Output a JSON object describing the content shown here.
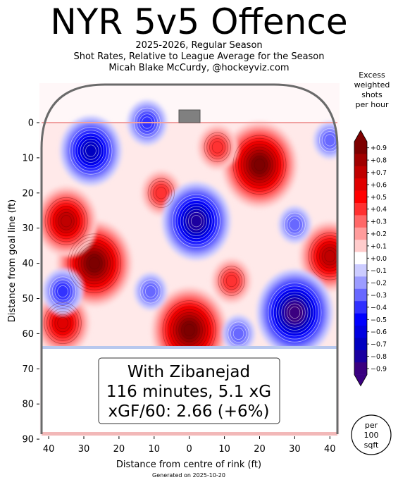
{
  "header": {
    "title": "NYR 5v5 Offence",
    "subtitle1": "2025-2026, Regular Season",
    "subtitle2": "Shot Rates, Relative to League Average for the Season",
    "subtitle3": "Micah Blake McCurdy, @hockeyviz.com"
  },
  "footer": {
    "generated": "Generated on 2025-10-20"
  },
  "colorbar": {
    "title": [
      "Excess",
      "weighted",
      "shots",
      "per hour"
    ],
    "ticks": [
      "+0.9",
      "+0.8",
      "+0.7",
      "+0.6",
      "+0.5",
      "+0.4",
      "+0.3",
      "+0.2",
      "+0.1",
      "+0.0",
      "−0.1",
      "−0.2",
      "−0.3",
      "−0.4",
      "−0.5",
      "−0.6",
      "−0.7",
      "−0.8",
      "−0.9"
    ],
    "colors": [
      "#7d0000",
      "#a00000",
      "#c00000",
      "#e00000",
      "#ff0000",
      "#ff3030",
      "#ff6868",
      "#ff9c9c",
      "#ffcccc",
      "#ffffff",
      "#ccccff",
      "#9c9cff",
      "#6868ff",
      "#3030ff",
      "#0000ff",
      "#0000e0",
      "#0000c0",
      "#1a00a0",
      "#3a0080"
    ],
    "scale_note_lines": [
      "per",
      "100",
      "sqft"
    ]
  },
  "annotation": {
    "line1": "With Zibanejad",
    "line2": "116 minutes, 5.1 xG",
    "line3": "xGF/60: 2.66 (+6%)"
  },
  "chart_data": {
    "type": "heatmap",
    "xlabel": "Distance from centre of rink (ft)",
    "ylabel": "Distance from goal line (ft)",
    "x_ticks": [
      40,
      30,
      20,
      10,
      0,
      10,
      20,
      30,
      40
    ],
    "y_ticks": [
      0,
      10,
      20,
      30,
      40,
      50,
      60,
      70,
      80,
      90
    ],
    "xlim": [
      -42.5,
      42.5
    ],
    "ylim": [
      -11,
      89
    ],
    "hotspots": [
      {
        "x": -27,
        "y": 40,
        "value": 0.9
      },
      {
        "x": -35,
        "y": 28,
        "value": 0.7
      },
      {
        "x": -36,
        "y": 57,
        "value": 0.6
      },
      {
        "x": 20,
        "y": 12,
        "value": 0.9
      },
      {
        "x": 0,
        "y": 59,
        "value": 0.9
      },
      {
        "x": 40,
        "y": 38,
        "value": 0.7
      },
      {
        "x": 8,
        "y": 7,
        "value": 0.4
      },
      {
        "x": -8,
        "y": 20,
        "value": 0.4
      },
      {
        "x": 12,
        "y": 45,
        "value": 0.4
      },
      {
        "x": 2,
        "y": 28,
        "value": -0.8
      },
      {
        "x": -28,
        "y": 8,
        "value": -0.7
      },
      {
        "x": 30,
        "y": 54,
        "value": -0.9
      },
      {
        "x": 14,
        "y": 60,
        "value": -0.3
      },
      {
        "x": 40,
        "y": 5,
        "value": -0.3
      },
      {
        "x": -36,
        "y": 48,
        "value": -0.4
      },
      {
        "x": -11,
        "y": 48,
        "value": -0.3
      },
      {
        "x": 30,
        "y": 29,
        "value": -0.3
      },
      {
        "x": -12,
        "y": 0,
        "value": -0.4
      }
    ]
  }
}
